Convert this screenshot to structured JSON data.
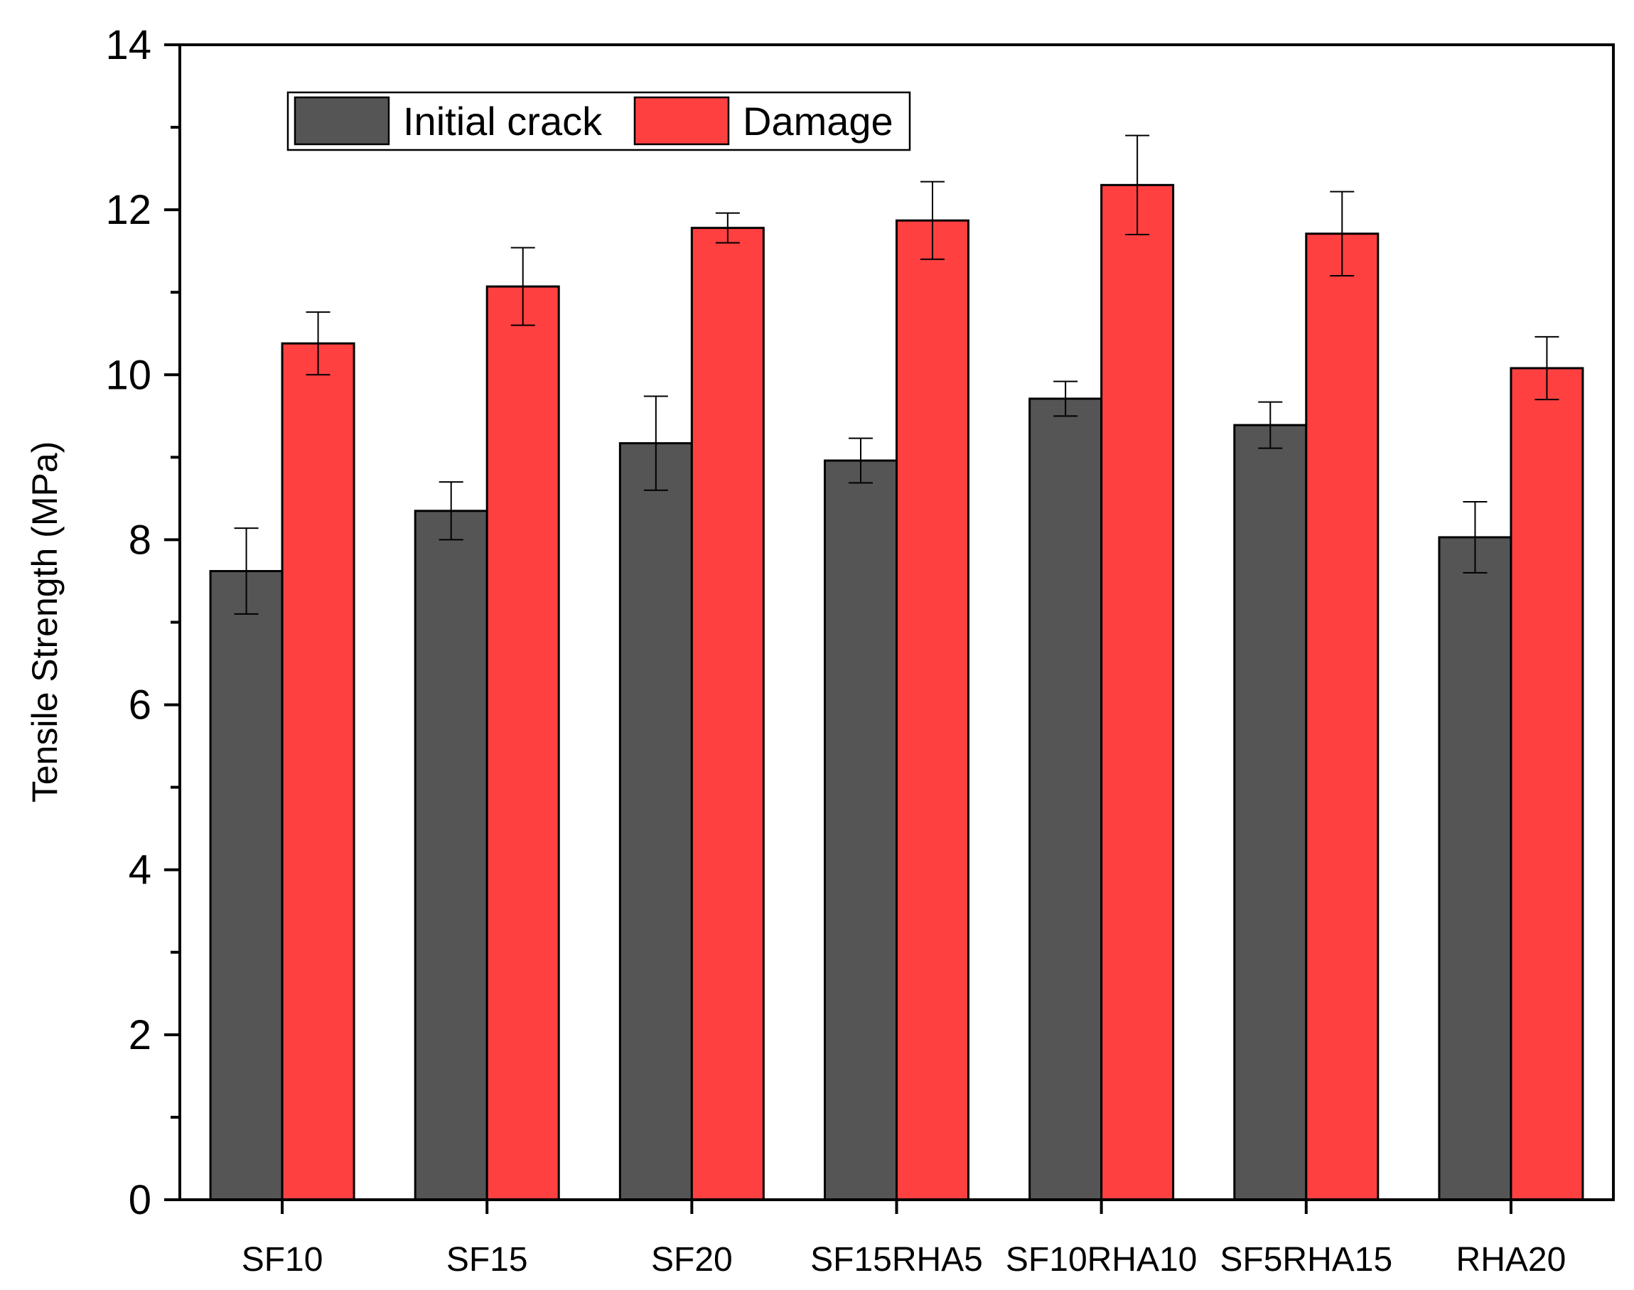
{
  "chart_data": {
    "type": "bar",
    "title": "",
    "xlabel": "",
    "ylabel": "Tensile Strength (MPa)",
    "ylim": [
      0,
      14
    ],
    "yticks": [
      "0",
      "2",
      "4",
      "6",
      "8",
      "10",
      "12",
      "14"
    ],
    "grid": false,
    "legend_position": "top-left",
    "categories": [
      "SF10",
      "SF15",
      "SF20",
      "SF15RHA5",
      "SF10RHA10",
      "SF5RHA15",
      "RHA20"
    ],
    "series": [
      {
        "name": "Initial crack",
        "color": "#555555",
        "values": [
          7.62,
          8.35,
          9.17,
          8.96,
          9.71,
          9.39,
          8.03
        ],
        "errors": [
          0.52,
          0.35,
          0.57,
          0.27,
          0.21,
          0.28,
          0.43
        ]
      },
      {
        "name": "Damage",
        "color": "#ff4040",
        "values": [
          10.38,
          11.07,
          11.78,
          11.87,
          12.3,
          11.71,
          10.08
        ],
        "errors": [
          0.38,
          0.47,
          0.18,
          0.47,
          0.6,
          0.51,
          0.38
        ]
      }
    ]
  }
}
